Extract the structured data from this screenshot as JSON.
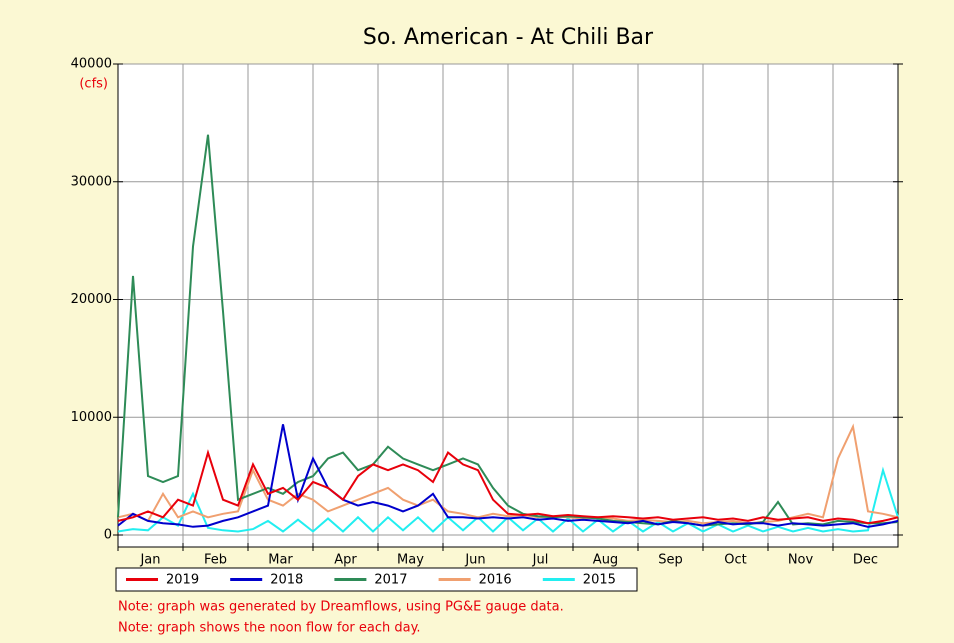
{
  "chart_data": {
    "type": "line",
    "title": "So. American - At Chili Bar",
    "y_unit": "(cfs)",
    "categories": [
      "Jan",
      "Feb",
      "Mar",
      "Apr",
      "May",
      "Jun",
      "Jul",
      "Aug",
      "Sep",
      "Oct",
      "Nov",
      "Dec"
    ],
    "x": [
      1,
      8,
      15,
      22,
      29,
      36,
      43,
      50,
      57,
      64,
      71,
      78,
      85,
      92,
      99,
      106,
      113,
      120,
      127,
      134,
      141,
      148,
      155,
      162,
      169,
      176,
      183,
      190,
      197,
      204,
      211,
      218,
      225,
      232,
      239,
      246,
      253,
      260,
      267,
      274,
      281,
      288,
      295,
      302,
      309,
      316,
      323,
      330,
      337,
      344,
      351,
      358,
      365
    ],
    "xlim": [
      1,
      365
    ],
    "ylim": [
      0,
      40000
    ],
    "yticks": [
      0,
      10000,
      20000,
      30000,
      40000
    ],
    "grid": true,
    "series": [
      {
        "name": "2019",
        "color": "#e8000b",
        "values": [
          1200,
          1500,
          2000,
          1500,
          3000,
          2500,
          7000,
          3000,
          2500,
          6000,
          3500,
          4000,
          3000,
          4500,
          4000,
          3000,
          5000,
          6000,
          5500,
          6000,
          5500,
          4500,
          7000,
          6000,
          5500,
          3000,
          1800,
          1700,
          1800,
          1600,
          1700,
          1600,
          1500,
          1600,
          1500,
          1400,
          1500,
          1300,
          1400,
          1500,
          1300,
          1400,
          1200,
          1500,
          1300,
          1400,
          1500,
          1200,
          1400,
          1300,
          1000,
          1200,
          1500
        ]
      },
      {
        "name": "2018",
        "color": "#0000cc",
        "values": [
          800,
          1800,
          1200,
          1000,
          900,
          700,
          800,
          1200,
          1500,
          2000,
          2500,
          9400,
          3000,
          6500,
          4000,
          3000,
          2500,
          2800,
          2500,
          2000,
          2500,
          3500,
          1500,
          1500,
          1400,
          1500,
          1400,
          1500,
          1300,
          1400,
          1200,
          1300,
          1200,
          1100,
          1000,
          1200,
          900,
          1100,
          1000,
          800,
          1100,
          900,
          1000,
          1000,
          800,
          1000,
          900,
          800,
          900,
          1000,
          700,
          900,
          1200
        ]
      },
      {
        "name": "2017",
        "color": "#2e8b57",
        "values": [
          1500,
          22000,
          5000,
          4500,
          5000,
          24500,
          34000,
          19000,
          3000,
          3500,
          4000,
          3500,
          4500,
          5000,
          6500,
          7000,
          5500,
          6000,
          7500,
          6500,
          6000,
          5500,
          6000,
          6500,
          6000,
          4000,
          2500,
          1800,
          1600,
          1500,
          1600,
          1500,
          1400,
          1200,
          1100,
          1000,
          900,
          1200,
          1000,
          800,
          900,
          1000,
          900,
          1100,
          2800,
          900,
          1000,
          900,
          1200,
          1100,
          1000,
          1000,
          1100
        ]
      },
      {
        "name": "2016",
        "color": "#f0a070",
        "values": [
          1500,
          1800,
          1200,
          3500,
          1500,
          2000,
          1500,
          1800,
          2000,
          5500,
          3000,
          2500,
          3500,
          3000,
          2000,
          2500,
          3000,
          3500,
          4000,
          3000,
          2500,
          3000,
          2000,
          1800,
          1500,
          1800,
          1600,
          1700,
          1500,
          1600,
          1500,
          1400,
          1500,
          1400,
          1200,
          1300,
          1200,
          1100,
          1200,
          1000,
          1100,
          1200,
          1000,
          1100,
          1200,
          1500,
          1800,
          1500,
          6500,
          9200,
          2000,
          1800,
          1500
        ]
      },
      {
        "name": "2015",
        "color": "#22eef0",
        "values": [
          300,
          500,
          400,
          1500,
          800,
          3500,
          600,
          400,
          300,
          500,
          1200,
          300,
          1300,
          300,
          1400,
          300,
          1500,
          300,
          1500,
          400,
          1500,
          300,
          1500,
          400,
          1500,
          300,
          1500,
          400,
          1400,
          300,
          1400,
          300,
          1300,
          300,
          1200,
          300,
          1100,
          300,
          1000,
          300,
          900,
          300,
          800,
          300,
          700,
          300,
          600,
          300,
          500,
          300,
          400,
          5500,
          1500
        ]
      }
    ],
    "notes": [
      "Note: graph was generated by Dreamflows, using PG&E gauge data.",
      "Note: graph shows the noon flow for each day."
    ]
  }
}
